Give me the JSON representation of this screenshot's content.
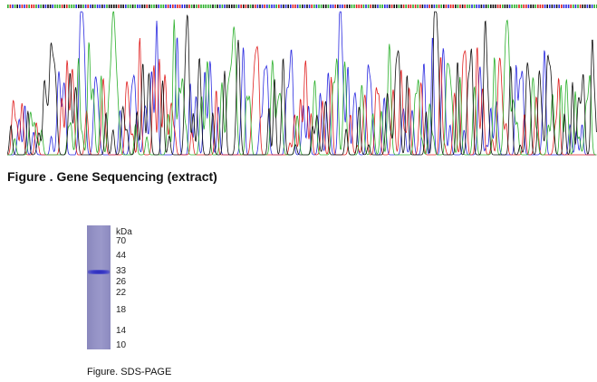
{
  "sequencing": {
    "caption": "Figure . Gene Sequencing (extract)",
    "colors": {
      "A": "#2cb02c",
      "C": "#2a2ae0",
      "G": "#111111",
      "T": "#e02020"
    }
  },
  "sds_page": {
    "caption": "Figure. SDS-PAGE",
    "unit": "kDa",
    "markers": [
      "70",
      "44",
      "33",
      "26",
      "22",
      "18",
      "14",
      "10"
    ]
  }
}
